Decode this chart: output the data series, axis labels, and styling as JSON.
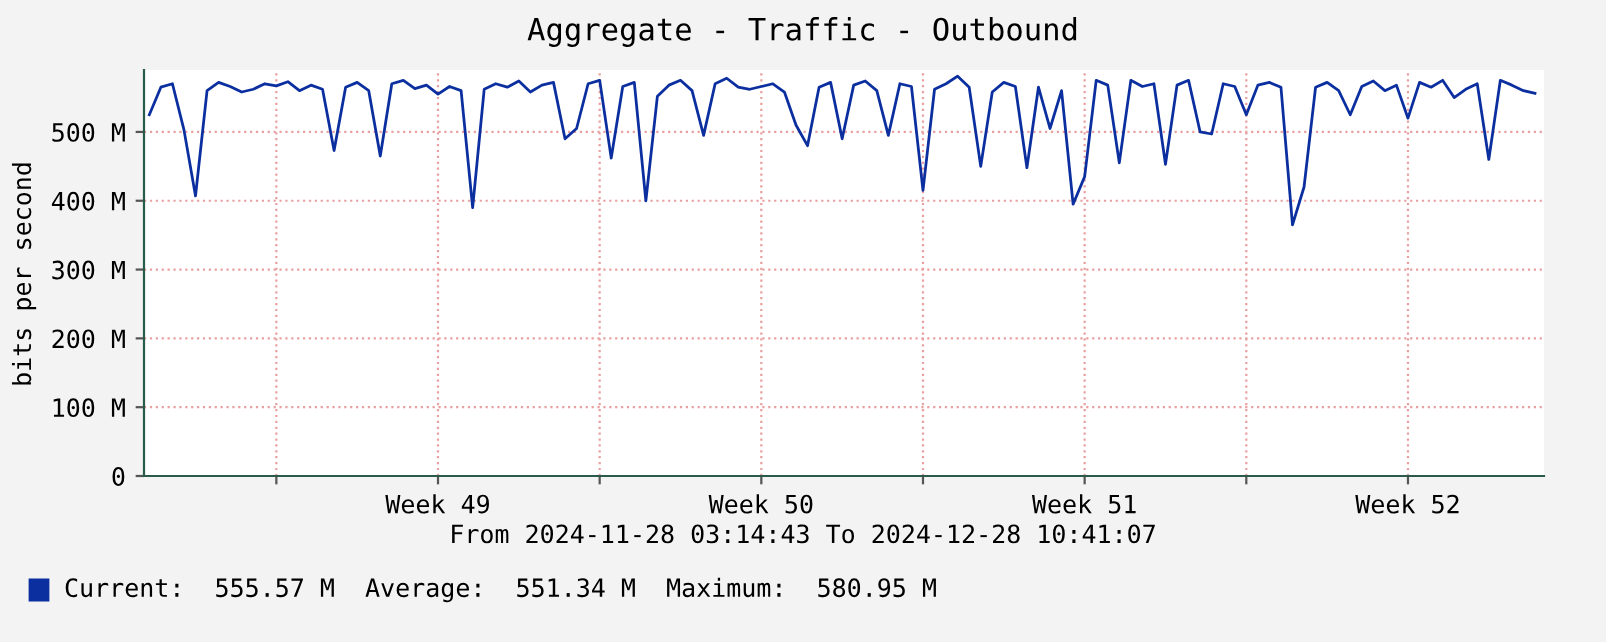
{
  "chart_data": {
    "type": "line",
    "title": "Aggregate - Traffic - Outbound",
    "xlabel": "From 2024-11-28 03:14:43 To 2024-12-28 10:41:07",
    "ylabel": "bits per second",
    "annotations": [
      "Current:  555.57 M  Average:  551.34 M  Maximum:  580.95 M"
    ],
    "x": [
      "2024-11-28T06:00",
      "2024-11-28T12:00",
      "2024-11-28T18:00",
      "2024-11-29T00:00",
      "2024-11-29T06:00",
      "2024-11-29T12:00",
      "2024-11-29T18:00",
      "2024-11-30T00:00",
      "2024-11-30T06:00",
      "2024-11-30T12:00",
      "2024-11-30T18:00",
      "2024-12-01T00:00",
      "2024-12-01T06:00",
      "2024-12-01T12:00",
      "2024-12-01T18:00",
      "2024-12-02T00:00",
      "2024-12-02T06:00",
      "2024-12-02T12:00",
      "2024-12-02T18:00",
      "2024-12-03T00:00",
      "2024-12-03T06:00",
      "2024-12-03T12:00",
      "2024-12-03T18:00",
      "2024-12-04T00:00",
      "2024-12-04T06:00",
      "2024-12-04T12:00",
      "2024-12-04T18:00",
      "2024-12-05T00:00",
      "2024-12-05T06:00",
      "2024-12-05T12:00",
      "2024-12-05T18:00",
      "2024-12-06T00:00",
      "2024-12-06T06:00",
      "2024-12-06T12:00",
      "2024-12-06T18:00",
      "2024-12-07T00:00",
      "2024-12-07T06:00",
      "2024-12-07T12:00",
      "2024-12-07T18:00",
      "2024-12-08T00:00",
      "2024-12-08T06:00",
      "2024-12-08T12:00",
      "2024-12-08T18:00",
      "2024-12-09T00:00",
      "2024-12-09T06:00",
      "2024-12-09T12:00",
      "2024-12-09T18:00",
      "2024-12-10T00:00",
      "2024-12-10T06:00",
      "2024-12-10T12:00",
      "2024-12-10T18:00",
      "2024-12-11T00:00",
      "2024-12-11T06:00",
      "2024-12-11T12:00",
      "2024-12-11T18:00",
      "2024-12-12T00:00",
      "2024-12-12T06:00",
      "2024-12-12T12:00",
      "2024-12-12T18:00",
      "2024-12-13T00:00",
      "2024-12-13T06:00",
      "2024-12-13T12:00",
      "2024-12-13T18:00",
      "2024-12-14T00:00",
      "2024-12-14T06:00",
      "2024-12-14T12:00",
      "2024-12-14T18:00",
      "2024-12-15T00:00",
      "2024-12-15T06:00",
      "2024-12-15T12:00",
      "2024-12-15T18:00",
      "2024-12-16T00:00",
      "2024-12-16T06:00",
      "2024-12-16T12:00",
      "2024-12-16T18:00",
      "2024-12-17T00:00",
      "2024-12-17T06:00",
      "2024-12-17T12:00",
      "2024-12-17T18:00",
      "2024-12-18T00:00",
      "2024-12-18T06:00",
      "2024-12-18T12:00",
      "2024-12-18T18:00",
      "2024-12-19T00:00",
      "2024-12-19T06:00",
      "2024-12-19T12:00",
      "2024-12-19T18:00",
      "2024-12-20T00:00",
      "2024-12-20T06:00",
      "2024-12-20T12:00",
      "2024-12-20T18:00",
      "2024-12-21T00:00",
      "2024-12-21T06:00",
      "2024-12-21T12:00",
      "2024-12-21T18:00",
      "2024-12-22T00:00",
      "2024-12-22T06:00",
      "2024-12-22T12:00",
      "2024-12-22T18:00",
      "2024-12-23T00:00",
      "2024-12-23T06:00",
      "2024-12-23T12:00",
      "2024-12-23T18:00",
      "2024-12-24T00:00",
      "2024-12-24T06:00",
      "2024-12-24T12:00",
      "2024-12-24T18:00",
      "2024-12-25T00:00",
      "2024-12-25T06:00",
      "2024-12-25T12:00",
      "2024-12-25T18:00",
      "2024-12-26T00:00",
      "2024-12-26T06:00",
      "2024-12-26T12:00",
      "2024-12-26T18:00",
      "2024-12-27T00:00",
      "2024-12-27T06:00",
      "2024-12-27T12:00",
      "2024-12-27T18:00",
      "2024-12-28T00:00",
      "2024-12-28T06:00"
    ],
    "series": [
      {
        "color": "#0c2fa0",
        "values": [
          525,
          565,
          570,
          503,
          407,
          560,
          572,
          566,
          558,
          562,
          570,
          567,
          573,
          560,
          568,
          562,
          473,
          565,
          572,
          560,
          465,
          570,
          575,
          563,
          568,
          555,
          566,
          560,
          390,
          562,
          570,
          565,
          574,
          558,
          568,
          572,
          490,
          505,
          570,
          575,
          462,
          566,
          572,
          400,
          552,
          568,
          575,
          560,
          495,
          570,
          578,
          565,
          562,
          566,
          570,
          558,
          510,
          480,
          565,
          572,
          490,
          568,
          574,
          560,
          495,
          570,
          566,
          415,
          562,
          570,
          581,
          565,
          450,
          558,
          572,
          566,
          448,
          565,
          505,
          560,
          395,
          435,
          575,
          568,
          455,
          575,
          566,
          570,
          453,
          568,
          575,
          500,
          497,
          570,
          566,
          525,
          568,
          572,
          565,
          365,
          420,
          565,
          572,
          560,
          525,
          566,
          574,
          560,
          568,
          520,
          572,
          565,
          575,
          550,
          562,
          570,
          460,
          575,
          568,
          560,
          556
        ]
      }
    ],
    "xlim": [
      "2024-11-28T03:14",
      "2024-12-28T10:41"
    ],
    "xticks": [
      {
        "value": "2024-12-01",
        "label": null
      },
      {
        "value": "2024-12-04T12:00",
        "label": "Week 49"
      },
      {
        "value": "2024-12-08",
        "label": null
      },
      {
        "value": "2024-12-11T12:00",
        "label": "Week 50"
      },
      {
        "value": "2024-12-15",
        "label": null
      },
      {
        "value": "2024-12-18T12:00",
        "label": "Week 51"
      },
      {
        "value": "2024-12-22",
        "label": null
      },
      {
        "value": "2024-12-25T12:00",
        "label": "Week 52"
      }
    ],
    "ylim": [
      0,
      590
    ],
    "yticks": [
      0,
      {
        "value": 100,
        "label": "100 M"
      },
      {
        "value": 200,
        "label": "200 M"
      },
      {
        "value": 300,
        "label": "300 M"
      },
      {
        "value": 400,
        "label": "400 M"
      },
      {
        "value": 500,
        "label": "500 M"
      }
    ],
    "grid": true,
    "legend": false,
    "marker": "none",
    "line_style": "solid"
  }
}
